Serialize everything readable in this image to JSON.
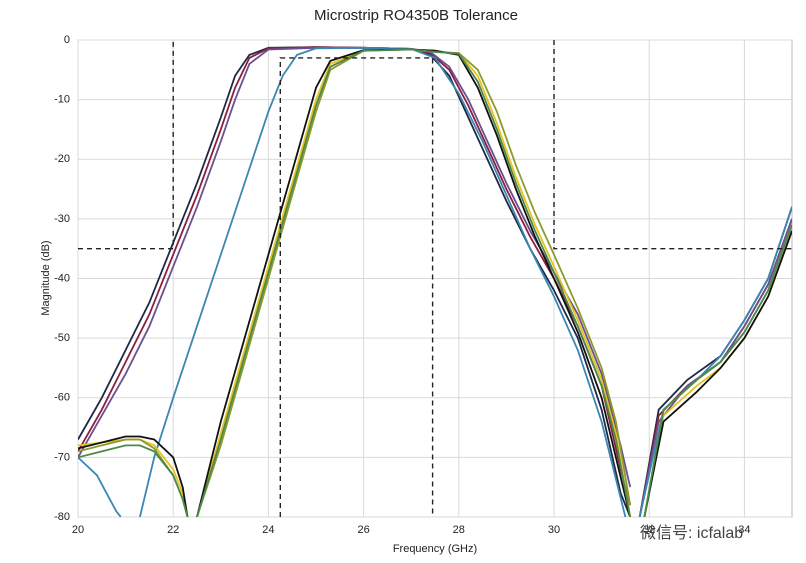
{
  "chart_data": {
    "type": "line",
    "title": "Microstrip RO4350B Tolerance",
    "x_label": "Frequency (GHz)",
    "y_label": "Magnitude (dB)",
    "watermark": "微信号: icfalab",
    "xlim": [
      20,
      35
    ],
    "ylim": [
      -80,
      0
    ],
    "xticks": [
      20,
      22,
      24,
      26,
      28,
      30,
      32,
      34
    ],
    "yticks": [
      0,
      -10,
      -20,
      -30,
      -40,
      -50,
      -60,
      -70,
      -80
    ],
    "grid": true,
    "series": [
      {
        "color": "#1c2a44",
        "x": [
          20,
          20.5,
          21,
          21.5,
          22,
          22.5,
          23,
          23.3,
          23.6,
          24,
          25,
          26,
          27,
          27.4,
          27.8,
          28.2,
          28.6,
          29,
          29.5,
          30,
          30.5,
          31,
          31.4,
          31.6,
          31.7,
          31.8,
          32.2,
          32.8,
          33.5,
          34,
          34.5,
          35
        ],
        "values": [
          -67,
          -60,
          -52,
          -44,
          -34,
          -24,
          -13,
          -6,
          -2.5,
          -1.3,
          -1.2,
          -1.3,
          -1.5,
          -2.5,
          -6,
          -13,
          -20,
          -27,
          -35,
          -42,
          -50,
          -62,
          -76,
          -80,
          null,
          -80,
          -62,
          -57,
          -53,
          -47,
          -40,
          -28
        ]
      },
      {
        "color": "#8b1f3f",
        "x": [
          20,
          20.5,
          21,
          21.5,
          22,
          22.5,
          23,
          23.3,
          23.6,
          24,
          25,
          26,
          27,
          27.4,
          27.8,
          28.2,
          28.6,
          29,
          29.5,
          30,
          30.5,
          31,
          31.4,
          31.6,
          31.7,
          31.8,
          32.2,
          32.8,
          33.5,
          34,
          34.5,
          35
        ],
        "values": [
          -69,
          -62,
          -54,
          -46,
          -36,
          -26,
          -15,
          -8,
          -3,
          -1.4,
          -1.2,
          -1.3,
          -1.5,
          -2.2,
          -5,
          -11,
          -18,
          -25,
          -33,
          -40,
          -48,
          -58,
          -72,
          -78,
          null,
          -80,
          -63,
          -58,
          -54,
          -48,
          -41,
          -30
        ]
      },
      {
        "color": "#6b4f8f",
        "x": [
          20,
          20.5,
          21,
          21.5,
          22,
          22.5,
          23,
          23.3,
          23.6,
          24,
          25,
          26,
          27,
          27.4,
          27.8,
          28.2,
          28.6,
          29,
          29.5,
          30,
          30.5,
          31,
          31.4,
          31.6,
          31.7,
          31.8,
          32.2,
          32.8,
          33.5,
          34,
          34.5,
          35
        ],
        "values": [
          -70,
          -63,
          -56,
          -48,
          -38,
          -28,
          -17,
          -10,
          -4,
          -1.6,
          -1.3,
          -1.3,
          -1.5,
          -2,
          -4.5,
          -10,
          -17,
          -24,
          -32,
          -39,
          -46,
          -56,
          -68,
          -75,
          null,
          -80,
          -64,
          -58,
          -54,
          -48,
          -41,
          -30
        ]
      },
      {
        "color": "#3b86b5",
        "x": [
          20,
          20.4,
          20.8,
          20.9,
          21.2,
          21.3,
          21.6,
          22,
          22.5,
          23,
          23.5,
          24,
          24.3,
          24.6,
          25,
          26,
          27,
          27.5,
          28,
          28.5,
          29,
          29.5,
          30,
          30.5,
          31,
          31.5,
          31.7,
          31.8,
          32.3,
          33,
          33.5,
          34,
          34.5,
          35
        ],
        "values": [
          -70,
          -73,
          -79,
          -80,
          null,
          -80,
          -70,
          -60,
          -48,
          -36,
          -24,
          -12,
          -6,
          -2.5,
          -1.4,
          -1.3,
          -1.5,
          -3,
          -9,
          -17,
          -26,
          -35,
          -43,
          -52,
          -64,
          -80,
          null,
          -80,
          -62,
          -57,
          -53,
          -47,
          -40,
          -28
        ]
      },
      {
        "color": "#e6c21e",
        "x": [
          20,
          20.5,
          21,
          21.3,
          21.6,
          22,
          22.2,
          22.3,
          22.45,
          22.5,
          23,
          23.5,
          24,
          24.5,
          25,
          25.3,
          26,
          27,
          27.5,
          28,
          28.4,
          28.8,
          29.2,
          29.6,
          30,
          30.5,
          31,
          31.3,
          31.6,
          31.7,
          31.9,
          32.3,
          33,
          33.5,
          34,
          34.5,
          35
        ],
        "values": [
          -68,
          -67.5,
          -67,
          -67,
          -68,
          -72,
          -76,
          -80,
          null,
          -80,
          -66,
          -52,
          -38,
          -24,
          -10,
          -4,
          -1.8,
          -1.6,
          -2,
          -2.2,
          -6,
          -14,
          -23,
          -31,
          -38,
          -47,
          -57,
          -66,
          -80,
          null,
          -80,
          -63,
          -58,
          -55,
          -50,
          -43,
          -32
        ]
      },
      {
        "color": "#8c9a2e",
        "x": [
          20,
          20.5,
          21,
          21.3,
          21.6,
          22,
          22.2,
          22.3,
          22.45,
          22.5,
          23,
          23.5,
          24,
          24.5,
          25,
          25.3,
          26,
          27,
          27.5,
          28,
          28.4,
          28.8,
          29.2,
          29.6,
          30,
          30.5,
          31,
          31.3,
          31.6,
          31.7,
          31.9,
          32.3,
          33,
          33.5,
          34,
          34.5,
          35
        ],
        "values": [
          -69,
          -68,
          -67,
          -67,
          -68.5,
          -73,
          -77,
          -80,
          null,
          -80,
          -68,
          -54,
          -40,
          -26,
          -12,
          -5,
          -1.8,
          -1.6,
          -2,
          -2.2,
          -5,
          -12,
          -21,
          -29,
          -36,
          -45,
          -55,
          -64,
          -78,
          null,
          -80,
          -62,
          -57,
          -54,
          -49,
          -42,
          -31
        ]
      },
      {
        "color": "#111111",
        "x": [
          20,
          20.5,
          21,
          21.3,
          21.6,
          22,
          22.2,
          22.3,
          22.45,
          22.5,
          23,
          23.5,
          24,
          24.5,
          25,
          25.3,
          26,
          27,
          27.5,
          28,
          28.4,
          28.8,
          29.2,
          29.6,
          30,
          30.5,
          31,
          31.3,
          31.6,
          31.7,
          31.9,
          32.3,
          33,
          33.5,
          34,
          34.5,
          35
        ],
        "values": [
          -68.5,
          -67.5,
          -66.5,
          -66.5,
          -67,
          -70,
          -75,
          -80,
          null,
          -80,
          -64,
          -50,
          -36,
          -22,
          -8,
          -3.5,
          -1.7,
          -1.6,
          -1.8,
          -2.5,
          -8,
          -16,
          -25,
          -33,
          -40,
          -49,
          -60,
          -70,
          -80,
          null,
          -80,
          -64,
          -59,
          -55,
          -50,
          -43,
          -32
        ]
      },
      {
        "color": "#4a8a4a",
        "x": [
          20,
          20.5,
          21,
          21.3,
          21.6,
          22,
          22.2,
          22.3,
          22.45,
          22.5,
          23,
          23.5,
          24,
          24.5,
          25,
          25.3,
          26,
          27,
          27.5,
          28,
          28.4,
          28.8,
          29.2,
          29.6,
          30,
          30.5,
          31,
          31.3,
          31.6,
          31.7,
          31.9,
          32.3,
          33,
          33.5,
          34,
          34.5,
          35
        ],
        "values": [
          -70,
          -69,
          -68,
          -68,
          -69,
          -73,
          -77,
          -80,
          null,
          -80,
          -67,
          -53,
          -39,
          -25,
          -11,
          -4.5,
          -1.8,
          -1.6,
          -2,
          -2.3,
          -7,
          -15,
          -24,
          -32,
          -39,
          -48,
          -58,
          -67,
          -80,
          null,
          -80,
          -62,
          -57,
          -54,
          -49,
          -42,
          -31
        ]
      }
    ],
    "limit_lines": [
      {
        "color": "#222222",
        "x": [
          20,
          22,
          22
        ],
        "values": [
          -35,
          -35,
          0
        ]
      },
      {
        "color": "#222222",
        "x": [
          30,
          30,
          35
        ],
        "values": [
          0,
          -35,
          -35
        ]
      },
      {
        "color": "#222222",
        "x": [
          24.25,
          24.25,
          27.45,
          27.45
        ],
        "values": [
          -80,
          -3,
          -3,
          -80
        ]
      }
    ]
  }
}
